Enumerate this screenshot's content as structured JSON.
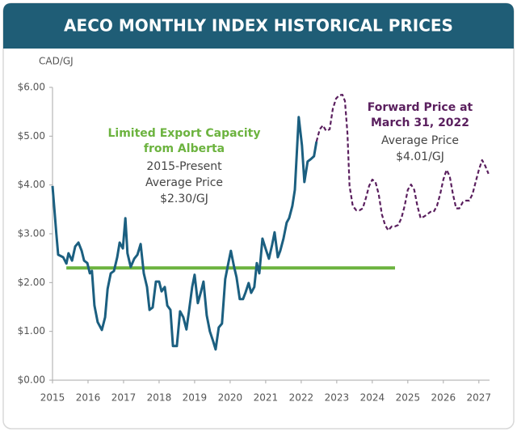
{
  "chart_data": {
    "type": "line",
    "title": "AECO MONTHLY INDEX HISTORICAL PRICES",
    "y_label": "CAD/GJ",
    "xlim": [
      2015,
      2027.3
    ],
    "xticks": [
      2015,
      2016,
      2017,
      2018,
      2019,
      2020,
      2021,
      2022,
      2023,
      2024,
      2025,
      2026,
      2027
    ],
    "ylim": [
      0,
      6
    ],
    "yticks": [
      {
        "value": 0,
        "label": "$0.00"
      },
      {
        "value": 1,
        "label": "$1.00"
      },
      {
        "value": 2,
        "label": "$2.00"
      },
      {
        "value": 3,
        "label": "$3.00"
      },
      {
        "value": 4,
        "label": "$4.00"
      },
      {
        "value": 5,
        "label": "$5.00"
      },
      {
        "value": 6,
        "label": "$6.00"
      }
    ],
    "grid": false,
    "series": [
      {
        "color": "#1b5f80",
        "dashed": false,
        "x": [
          2015.0,
          2015.11,
          2015.16,
          2015.3,
          2015.39,
          2015.45,
          2015.55,
          2015.64,
          2015.73,
          2015.82,
          2015.89,
          2015.98,
          2016.05,
          2016.11,
          2016.18,
          2016.27,
          2016.39,
          2016.48,
          2016.55,
          2016.64,
          2016.73,
          2016.82,
          2016.89,
          2016.98,
          2017.05,
          2017.11,
          2017.2,
          2017.3,
          2017.39,
          2017.48,
          2017.57,
          2017.66,
          2017.73,
          2017.82,
          2017.91,
          2018.0,
          2018.07,
          2018.16,
          2018.23,
          2018.32,
          2018.39,
          2018.5,
          2018.59,
          2018.68,
          2018.77,
          2018.84,
          2018.93,
          2019.0,
          2019.09,
          2019.18,
          2019.25,
          2019.34,
          2019.43,
          2019.52,
          2019.59,
          2019.68,
          2019.77,
          2019.86,
          2019.95,
          2020.02,
          2020.11,
          2020.18,
          2020.27,
          2020.36,
          2020.43,
          2020.52,
          2020.59,
          2020.68,
          2020.75,
          2020.82,
          2020.91,
          2021.0,
          2021.09,
          2021.18,
          2021.25,
          2021.34,
          2021.41,
          2021.5,
          2021.59,
          2021.66,
          2021.75,
          2021.82,
          2021.93,
          2022.02,
          2022.09,
          2022.18,
          2022.27,
          2022.36,
          2022.43
        ],
        "values": [
          3.98,
          2.99,
          2.57,
          2.52,
          2.39,
          2.6,
          2.45,
          2.74,
          2.82,
          2.65,
          2.45,
          2.4,
          2.19,
          2.24,
          1.53,
          1.19,
          1.03,
          1.29,
          1.87,
          2.19,
          2.24,
          2.52,
          2.82,
          2.7,
          3.32,
          2.6,
          2.32,
          2.49,
          2.57,
          2.79,
          2.19,
          1.91,
          1.44,
          1.49,
          2.02,
          2.02,
          1.82,
          1.91,
          1.53,
          1.44,
          0.7,
          0.7,
          1.41,
          1.29,
          1.04,
          1.41,
          1.91,
          2.16,
          1.58,
          1.82,
          2.02,
          1.33,
          1.0,
          0.8,
          0.63,
          1.08,
          1.16,
          2.07,
          2.4,
          2.65,
          2.32,
          2.11,
          1.66,
          1.66,
          1.79,
          1.99,
          1.79,
          1.91,
          2.4,
          2.19,
          2.9,
          2.69,
          2.49,
          2.77,
          3.03,
          2.52,
          2.65,
          2.9,
          3.23,
          3.32,
          3.57,
          3.9,
          5.39,
          4.81,
          4.06,
          4.48,
          4.53,
          4.59,
          4.89
        ]
      },
      {
        "color": "#5a1f5e",
        "dashed": true,
        "x": [
          2022.43,
          2022.52,
          2022.61,
          2022.7,
          2022.8,
          2022.89,
          2022.98,
          2023.07,
          2023.16,
          2023.23,
          2023.3,
          2023.36,
          2023.45,
          2023.55,
          2023.64,
          2023.73,
          2023.82,
          2023.91,
          2024.0,
          2024.09,
          2024.18,
          2024.27,
          2024.36,
          2024.45,
          2024.55,
          2024.64,
          2024.73,
          2024.82,
          2024.91,
          2025.0,
          2025.09,
          2025.18,
          2025.27,
          2025.36,
          2025.45,
          2025.55,
          2025.64,
          2025.73,
          2025.82,
          2025.91,
          2026.0,
          2026.09,
          2026.18,
          2026.27,
          2026.36,
          2026.45,
          2026.55,
          2026.64,
          2026.73,
          2026.82,
          2026.91,
          2027.0,
          2027.09,
          2027.18,
          2027.27
        ],
        "values": [
          4.89,
          5.14,
          5.22,
          5.11,
          5.14,
          5.56,
          5.77,
          5.84,
          5.85,
          5.72,
          5.06,
          3.98,
          3.57,
          3.48,
          3.48,
          3.52,
          3.73,
          3.98,
          4.11,
          4.06,
          3.81,
          3.4,
          3.18,
          3.07,
          3.15,
          3.15,
          3.18,
          3.32,
          3.57,
          3.9,
          4.01,
          3.9,
          3.57,
          3.32,
          3.35,
          3.4,
          3.45,
          3.45,
          3.57,
          3.81,
          4.11,
          4.31,
          4.18,
          3.81,
          3.52,
          3.52,
          3.65,
          3.68,
          3.68,
          3.81,
          4.06,
          4.31,
          4.51,
          4.39,
          4.23
        ]
      }
    ],
    "reference_line": {
      "value": 2.3,
      "x": [
        2015.39,
        2024.64
      ],
      "color": "#6cb33f"
    },
    "annotations": [
      {
        "heading": [
          "Limited Export Capacity",
          "from Alberta"
        ],
        "color": "#6cb33f",
        "text": [
          "2015-Present",
          "Average Price",
          "$2.30/GJ"
        ]
      },
      {
        "heading": [
          "Forward Price at",
          "March 31, 2022"
        ],
        "color": "#5a1f5e",
        "text": [
          "Average Price",
          "$4.01/GJ"
        ]
      }
    ]
  }
}
